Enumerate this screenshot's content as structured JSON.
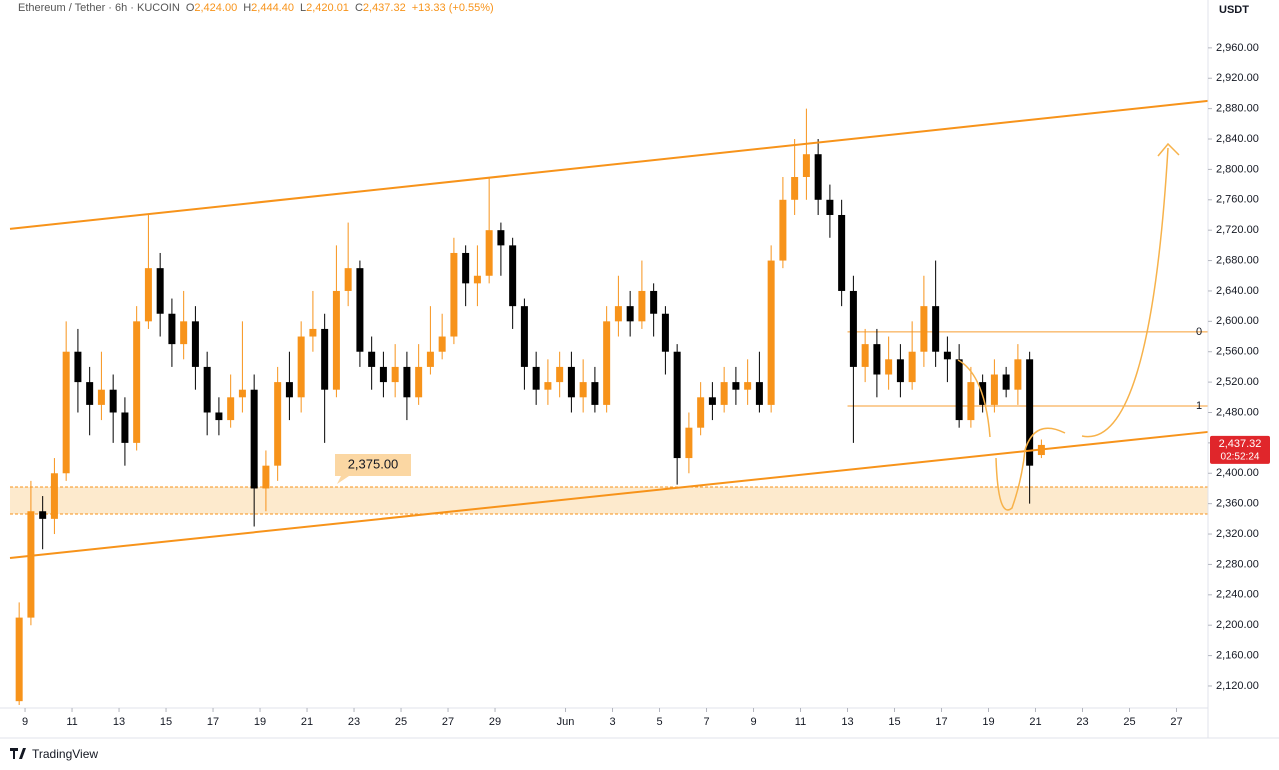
{
  "chart_data": {
    "type": "candlestick",
    "header": {
      "symbol": "Ethereum / Tether · 6h · KUCOIN",
      "open_letter": "O",
      "open": "2,424.00",
      "high_letter": "H",
      "high": "2,444.40",
      "low_letter": "L",
      "low": "2,420.01",
      "close_letter": "C",
      "close": "2,437.32",
      "change": "+13.33 (+0.55%)"
    },
    "y_axis_label": "USDT",
    "brand": "TradingView",
    "up_color": "#f7931a",
    "down_color": "#000000",
    "line_color": "#f7931a",
    "grid": false,
    "xlim": [
      -0.64,
      50.34
    ],
    "ylim": [
      2091,
      3023
    ],
    "xticks": [
      {
        "value": 0,
        "label": "9"
      },
      {
        "value": 2,
        "label": "11"
      },
      {
        "value": 4,
        "label": "13"
      },
      {
        "value": 6,
        "label": "15"
      },
      {
        "value": 8,
        "label": "17"
      },
      {
        "value": 10,
        "label": "19"
      },
      {
        "value": 12,
        "label": "21"
      },
      {
        "value": 14,
        "label": "23"
      },
      {
        "value": 16,
        "label": "25"
      },
      {
        "value": 18,
        "label": "27"
      },
      {
        "value": 20,
        "label": "29"
      },
      {
        "value": 23,
        "label": "Jun"
      },
      {
        "value": 25,
        "label": "3"
      },
      {
        "value": 27,
        "label": "5"
      },
      {
        "value": 29,
        "label": "7"
      },
      {
        "value": 31,
        "label": "9"
      },
      {
        "value": 33,
        "label": "11"
      },
      {
        "value": 35,
        "label": "13"
      },
      {
        "value": 37,
        "label": "15"
      },
      {
        "value": 39,
        "label": "17"
      },
      {
        "value": 41,
        "label": "19"
      },
      {
        "value": 43,
        "label": "21"
      },
      {
        "value": 45,
        "label": "23"
      },
      {
        "value": 47,
        "label": "25"
      },
      {
        "value": 49,
        "label": "27"
      }
    ],
    "yticks": [
      {
        "value": 2120,
        "label": "2,120.00"
      },
      {
        "value": 2160,
        "label": "2,160.00"
      },
      {
        "value": 2200,
        "label": "2,200.00"
      },
      {
        "value": 2240,
        "label": "2,240.00"
      },
      {
        "value": 2280,
        "label": "2,280.00"
      },
      {
        "value": 2320,
        "label": "2,320.00"
      },
      {
        "value": 2360,
        "label": "2,360.00"
      },
      {
        "value": 2400,
        "label": "2,400.00"
      },
      {
        "value": 2440,
        "label": "2,440.00"
      },
      {
        "value": 2480,
        "label": "2,480.00"
      },
      {
        "value": 2520,
        "label": "2,520.00"
      },
      {
        "value": 2560,
        "label": "2,560.00"
      },
      {
        "value": 2600,
        "label": "2,600.00"
      },
      {
        "value": 2640,
        "label": "2,640.00"
      },
      {
        "value": 2680,
        "label": "2,680.00"
      },
      {
        "value": 2720,
        "label": "2,720.00"
      },
      {
        "value": 2760,
        "label": "2,760.00"
      },
      {
        "value": 2800,
        "label": "2,800.00"
      },
      {
        "value": 2840,
        "label": "2,840.00"
      },
      {
        "value": 2880,
        "label": "2,880.00"
      },
      {
        "value": 2920,
        "label": "2,920.00"
      },
      {
        "value": 2960,
        "label": "2,960.00"
      }
    ],
    "x": [
      -0.25,
      0.25,
      0.75,
      1.25,
      1.75,
      2.25,
      2.75,
      3.25,
      3.75,
      4.25,
      4.75,
      5.25,
      5.75,
      6.25,
      6.75,
      7.25,
      7.75,
      8.25,
      8.75,
      9.25,
      9.75,
      10.25,
      10.75,
      11.25,
      11.75,
      12.25,
      12.75,
      13.25,
      13.75,
      14.25,
      14.75,
      15.25,
      15.75,
      16.25,
      16.75,
      17.25,
      17.75,
      18.25,
      18.75,
      19.25,
      19.75,
      20.25,
      20.75,
      21.25,
      21.75,
      22.25,
      22.75,
      23.25,
      23.75,
      24.25,
      24.75,
      25.25,
      25.75,
      26.25,
      26.75,
      27.25,
      27.75,
      28.25,
      28.75,
      29.25,
      29.75,
      30.25,
      30.75,
      31.25,
      31.75,
      32.25,
      32.75,
      33.25,
      33.75,
      34.25,
      34.75,
      35.25,
      35.75,
      36.25,
      36.75,
      37.25,
      37.75,
      38.25,
      38.75,
      39.25,
      39.75,
      40.25,
      40.75,
      41.25,
      41.75,
      42.25,
      42.75,
      43.25
    ],
    "open": [
      2100,
      2210,
      2350,
      2340,
      2400,
      2560,
      2520,
      2490,
      2510,
      2480,
      2440,
      2600,
      2670,
      2610,
      2570,
      2600,
      2540,
      2480,
      2470,
      2500,
      2510,
      2380,
      2410,
      2520,
      2500,
      2580,
      2590,
      2510,
      2640,
      2670,
      2560,
      2540,
      2520,
      2540,
      2500,
      2540,
      2560,
      2580,
      2690,
      2650,
      2660,
      2720,
      2700,
      2620,
      2540,
      2510,
      2520,
      2540,
      2500,
      2520,
      2490,
      2600,
      2620,
      2600,
      2640,
      2610,
      2560,
      2420,
      2460,
      2500,
      2490,
      2520,
      2510,
      2520,
      2490,
      2680,
      2760,
      2790,
      2820,
      2760,
      2740,
      2640,
      2540,
      2570,
      2530,
      2550,
      2520,
      2560,
      2620,
      2560,
      2550,
      2470,
      2520,
      2490,
      2530,
      2510,
      2550,
      2424
    ],
    "high": [
      2230,
      2390,
      2370,
      2420,
      2600,
      2590,
      2540,
      2560,
      2530,
      2500,
      2620,
      2740,
      2690,
      2630,
      2640,
      2620,
      2560,
      2500,
      2530,
      2600,
      2530,
      2430,
      2540,
      2560,
      2600,
      2640,
      2610,
      2700,
      2730,
      2680,
      2580,
      2560,
      2570,
      2560,
      2570,
      2620,
      2610,
      2710,
      2700,
      2700,
      2790,
      2730,
      2710,
      2630,
      2560,
      2550,
      2560,
      2560,
      2550,
      2540,
      2620,
      2660,
      2640,
      2680,
      2650,
      2620,
      2570,
      2480,
      2520,
      2520,
      2540,
      2540,
      2550,
      2560,
      2700,
      2790,
      2840,
      2880,
      2840,
      2780,
      2760,
      2660,
      2590,
      2590,
      2580,
      2570,
      2600,
      2660,
      2680,
      2580,
      2570,
      2540,
      2530,
      2550,
      2540,
      2570,
      2560,
      2444.4
    ],
    "low": [
      2095,
      2200,
      2300,
      2320,
      2390,
      2480,
      2450,
      2470,
      2440,
      2410,
      2430,
      2590,
      2580,
      2540,
      2550,
      2510,
      2450,
      2450,
      2460,
      2480,
      2330,
      2350,
      2390,
      2470,
      2480,
      2560,
      2440,
      2500,
      2620,
      2540,
      2510,
      2500,
      2500,
      2470,
      2490,
      2530,
      2550,
      2570,
      2620,
      2620,
      2650,
      2660,
      2590,
      2510,
      2490,
      2490,
      2500,
      2480,
      2480,
      2480,
      2480,
      2580,
      2580,
      2590,
      2580,
      2530,
      2385,
      2400,
      2450,
      2470,
      2480,
      2490,
      2490,
      2480,
      2480,
      2670,
      2740,
      2760,
      2740,
      2710,
      2620,
      2440,
      2520,
      2500,
      2510,
      2500,
      2510,
      2540,
      2540,
      2520,
      2460,
      2460,
      2480,
      2480,
      2500,
      2490,
      2360,
      2420.01
    ],
    "close": [
      2210,
      2350,
      2340,
      2400,
      2560,
      2520,
      2490,
      2510,
      2480,
      2440,
      2600,
      2670,
      2610,
      2570,
      2600,
      2540,
      2480,
      2470,
      2500,
      2510,
      2380,
      2410,
      2520,
      2500,
      2580,
      2590,
      2510,
      2640,
      2670,
      2560,
      2540,
      2520,
      2540,
      2500,
      2540,
      2560,
      2580,
      2690,
      2650,
      2660,
      2720,
      2700,
      2620,
      2540,
      2510,
      2520,
      2540,
      2500,
      2520,
      2490,
      2600,
      2620,
      2600,
      2640,
      2610,
      2560,
      2420,
      2460,
      2500,
      2490,
      2520,
      2510,
      2520,
      2490,
      2680,
      2760,
      2790,
      2820,
      2760,
      2740,
      2640,
      2540,
      2570,
      2530,
      2550,
      2520,
      2560,
      2620,
      2560,
      2550,
      2470,
      2520,
      2490,
      2530,
      2510,
      2550,
      2410,
      2437.32
    ],
    "trendlines": [
      {
        "x": [
          -0.64,
          50.34
        ],
        "y": [
          2721.7,
          2890.2
        ]
      },
      {
        "x": [
          -0.64,
          50.34
        ],
        "y": [
          2288.5,
          2454.4
        ]
      }
    ],
    "zone": {
      "ylim": [
        2346.4,
        2382
      ],
      "label": "2,375.00"
    },
    "fib": {
      "x": [
        35.0,
        50.34
      ],
      "levels": [
        {
          "value": 2586.1,
          "label": "0"
        },
        {
          "value": 2488.6,
          "label": "1"
        }
      ]
    },
    "last_price": {
      "value": 2437.32,
      "label": "2,437.32",
      "countdown": "02:52:24",
      "color": "#e0262b"
    }
  }
}
